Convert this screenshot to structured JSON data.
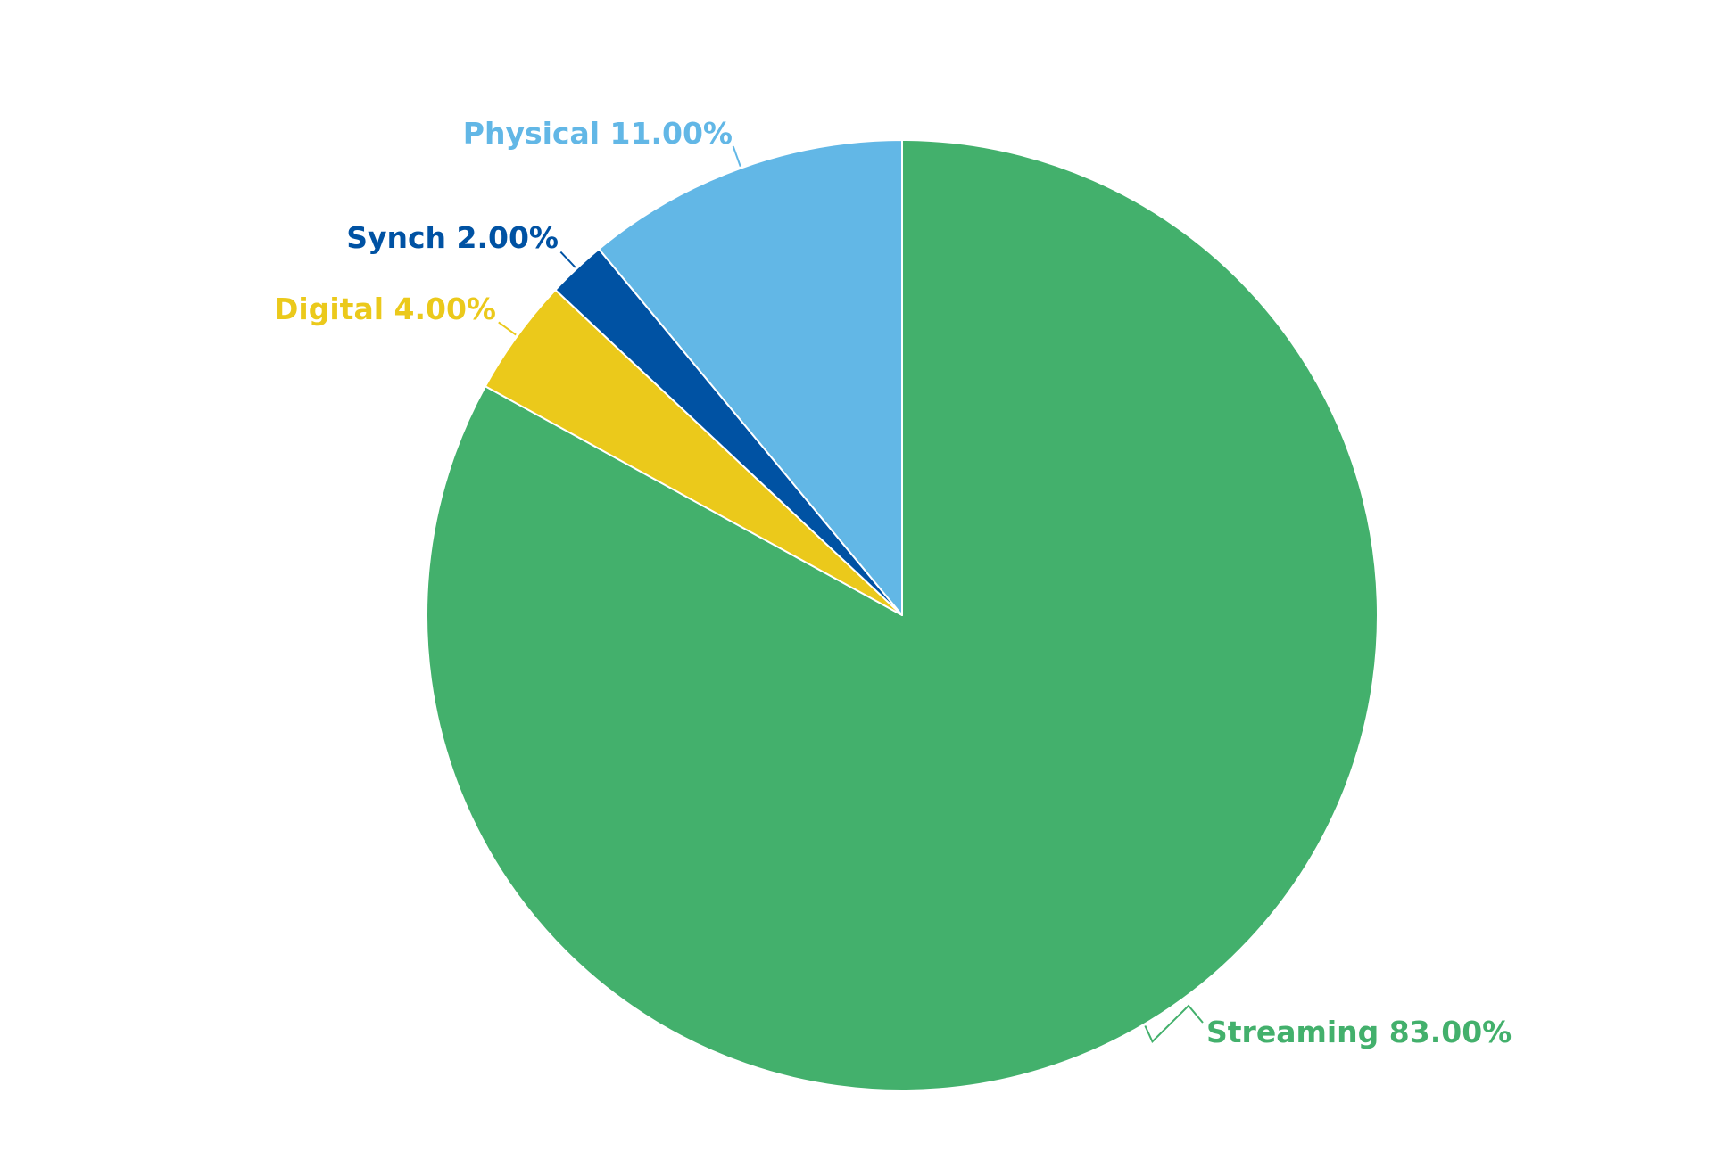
{
  "chart_data": {
    "type": "pie",
    "title": "",
    "start_angle_deg": 0,
    "direction": "clockwise",
    "slices": [
      {
        "label": "Streaming",
        "value": 83.0,
        "display": "Streaming 83.00%",
        "color": "#43B06C"
      },
      {
        "label": "Digital",
        "value": 4.0,
        "display": "Digital 4.00%",
        "color": "#EBC91B"
      },
      {
        "label": "Synch",
        "value": 2.0,
        "display": "Synch 2.00%",
        "color": "#0052A3"
      },
      {
        "label": "Physical",
        "value": 11.0,
        "display": "Physical 11.00%",
        "color": "#62B7E6"
      }
    ],
    "slice_border_color": "#FFFFFF"
  }
}
